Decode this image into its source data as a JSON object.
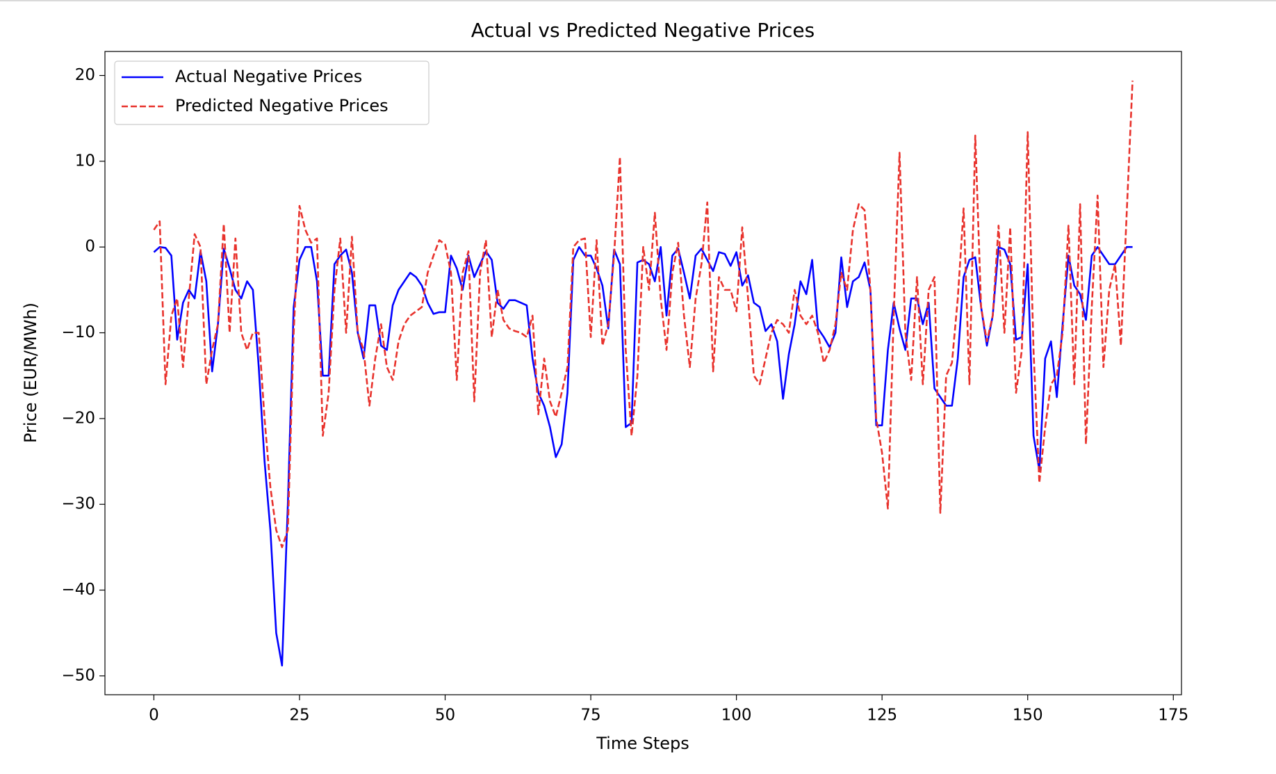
{
  "chart_data": {
    "type": "line",
    "title": "Actual vs Predicted Negative Prices",
    "x_label": "Time Steps",
    "y_label": "Price (EUR/MWh)",
    "xlim": [
      -8.4,
      176.4
    ],
    "ylim": [
      -52.2,
      22.8
    ],
    "xticks": [
      0,
      25,
      50,
      75,
      100,
      125,
      150,
      175
    ],
    "yticks": [
      {
        "value": -50,
        "label": "−50"
      },
      {
        "value": -40,
        "label": "−40"
      },
      {
        "value": -30,
        "label": "−30"
      },
      {
        "value": -20,
        "label": "−20"
      },
      {
        "value": -10,
        "label": "−10"
      },
      0,
      10,
      20
    ],
    "grid": false,
    "legend": "upper left",
    "series": [
      {
        "name": "Actual Negative Prices",
        "color": "#0000ff",
        "dash": "solid",
        "values": [
          -0.6,
          0,
          -0.1,
          -1,
          -10.8,
          -6.5,
          -5,
          -6,
          -0.5,
          -4,
          -14.5,
          -9,
          -0.2,
          -2.5,
          -5,
          -6,
          -4,
          -5,
          -14,
          -25,
          -33,
          -45,
          -48.8,
          -30,
          -7,
          -1.5,
          0,
          0,
          -4,
          -15,
          -15,
          -2,
          -1,
          -0.3,
          -3,
          -10,
          -13,
          -6.8,
          -6.8,
          -11.5,
          -12,
          -6.8,
          -5,
          -4,
          -3,
          -3.5,
          -4.5,
          -6.5,
          -7.8,
          -7.6,
          -7.6,
          -1,
          -2.5,
          -5,
          -1,
          -3.5,
          -2,
          -0.5,
          -1.5,
          -6.5,
          -7.2,
          -6.2,
          -6.2,
          -6.5,
          -6.8,
          -13,
          -17,
          -18.5,
          -21,
          -24.5,
          -23,
          -17,
          -1.5,
          0,
          -1,
          -1,
          -2.5,
          -4.5,
          -9.5,
          -0.3,
          -2,
          -21,
          -20.5,
          -1.8,
          -1.5,
          -2,
          -4,
          0,
          -8,
          -1,
          -0.2,
          -3,
          -6,
          -1,
          -0.2,
          -1.5,
          -2.8,
          -0.6,
          -0.8,
          -2.2,
          -0.6,
          -4.5,
          -3.3,
          -6.5,
          -7,
          -9.8,
          -9,
          -11,
          -17.7,
          -12.5,
          -9,
          -4,
          -5.5,
          -1.5,
          -9.5,
          -10.5,
          -11.7,
          -10,
          -1.2,
          -7,
          -4,
          -3.5,
          -1.8,
          -5,
          -20.8,
          -20.8,
          -12,
          -6.5,
          -9.5,
          -12,
          -6,
          -6,
          -9,
          -6.5,
          -16.5,
          -17.5,
          -18.5,
          -18.5,
          -13,
          -3.5,
          -1.5,
          -1.2,
          -7,
          -11.5,
          -8,
          0,
          -0.3,
          -2,
          -10.8,
          -10.5,
          -2,
          -22,
          -26,
          -13,
          -11,
          -17.5,
          -9,
          -1,
          -4.5,
          -5.5,
          -8.5,
          -1,
          0,
          -1,
          -2,
          -2,
          -1,
          0,
          0
        ]
      },
      {
        "name": "Predicted Negative Prices",
        "color": "#e8322c",
        "dash": "dashed",
        "values": [
          2,
          3,
          -16,
          -8,
          -6,
          -14,
          -6,
          1.5,
          0,
          -16,
          -12,
          -9,
          2.7,
          -10,
          1,
          -10,
          -12,
          -10,
          -10,
          -20,
          -28,
          -33,
          -35,
          -33,
          -10,
          4.8,
          2,
          0.5,
          1,
          -22,
          -17,
          -5,
          1,
          -10,
          1.2,
          -10,
          -12,
          -18.5,
          -13,
          -9,
          -14,
          -15.5,
          -11,
          -9,
          -8,
          -7.5,
          -7,
          -3,
          -1,
          0.8,
          0.3,
          -3,
          -15.5,
          -3,
          -0.5,
          -18,
          -3,
          0.8,
          -10.5,
          -5,
          -8.5,
          -9.5,
          -9.8,
          -10,
          -10.5,
          -8,
          -19.5,
          -13,
          -18,
          -19.8,
          -17,
          -14,
          0,
          0.8,
          1,
          -10.5,
          0.8,
          -11.5,
          -9,
          -1,
          10.5,
          -12,
          -22,
          -15,
          0,
          -5,
          4,
          -6,
          -12,
          -3,
          0.5,
          -8,
          -14,
          -6,
          -2,
          5.2,
          -14.5,
          -3.5,
          -5,
          -5,
          -7.5,
          2.3,
          -6,
          -15,
          -16,
          -13,
          -10,
          -8.5,
          -9,
          -10,
          -5,
          -8,
          -9,
          -8,
          -10,
          -13.5,
          -12,
          -9,
          -3,
          -5,
          2,
          5,
          4.3,
          -5,
          -20,
          -24,
          -30.5,
          -8,
          11,
          -10,
          -15.5,
          -3.5,
          -16,
          -5,
          -3.5,
          -31,
          -15,
          -13.5,
          -6,
          4.5,
          -16,
          13,
          -7,
          -11,
          -8,
          2.5,
          -10,
          2.3,
          -17,
          -12,
          13.4,
          -12,
          -27.5,
          -21,
          -16,
          -15,
          -10,
          2.5,
          -16,
          5,
          -23,
          -7,
          6,
          -14,
          -5,
          -2,
          -11.5,
          4,
          19.4
        ]
      }
    ]
  }
}
